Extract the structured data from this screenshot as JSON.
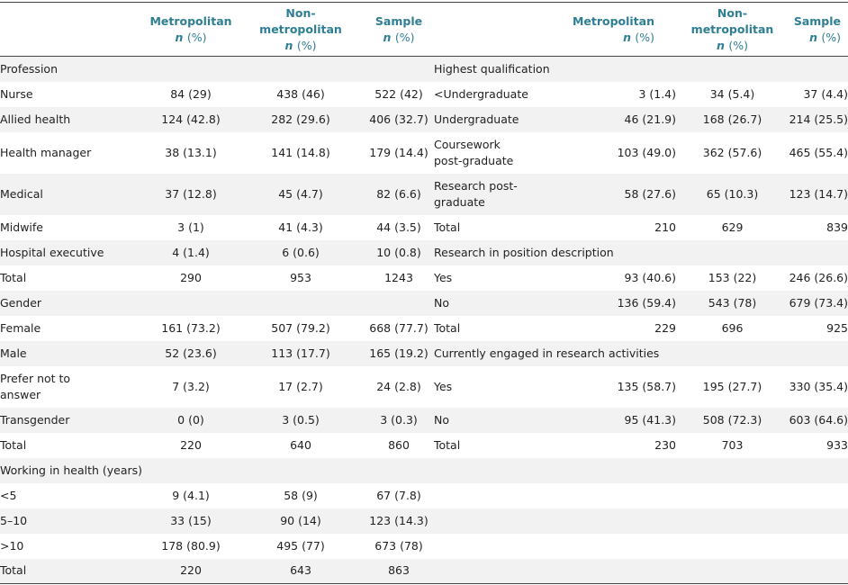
{
  "header": {
    "cols": [
      {
        "line1": "Metropolitan",
        "n": "n",
        "pct": "(%)"
      },
      {
        "line1": "Non-",
        "line2": "metropolitan",
        "n": "n",
        "pct": "(%)"
      },
      {
        "line1": "Sample",
        "n": "n",
        "pct": "(%)"
      }
    ]
  },
  "rows": [
    {
      "left": {
        "label": "Profession",
        "vals": [
          "",
          "",
          ""
        ]
      },
      "right": {
        "label": "Highest qualification",
        "vals": [
          "",
          "",
          ""
        ]
      }
    },
    {
      "left": {
        "label": "Nurse",
        "vals": [
          "84 (29)",
          "438 (46)",
          "522 (42)"
        ]
      },
      "right": {
        "label": "<Undergraduate",
        "vals": [
          "3 (1.4)",
          "34 (5.4)",
          "37 (4.4)"
        ]
      }
    },
    {
      "left": {
        "label": "Allied health",
        "vals": [
          "124 (42.8)",
          "282 (29.6)",
          "406 (32.7)"
        ]
      },
      "right": {
        "label": "Undergraduate",
        "vals": [
          "46 (21.9)",
          "168 (26.7)",
          "214 (25.5)"
        ]
      }
    },
    {
      "left": {
        "label": "Health manager",
        "vals": [
          "38 (13.1)",
          "141 (14.8)",
          "179 (14.4)"
        ]
      },
      "right": {
        "label": "Coursework post-graduate",
        "vals": [
          "103 (49.0)",
          "362 (57.6)",
          "465 (55.4)"
        ]
      }
    },
    {
      "left": {
        "label": "Medical",
        "vals": [
          "37 (12.8)",
          "45 (4.7)",
          "82 (6.6)"
        ]
      },
      "right": {
        "label": "Research post-graduate",
        "vals": [
          "58 (27.6)",
          "65 (10.3)",
          "123 (14.7)"
        ]
      }
    },
    {
      "left": {
        "label": "Midwife",
        "vals": [
          "3 (1)",
          "41 (4.3)",
          "44 (3.5)"
        ]
      },
      "right": {
        "label": "Total",
        "vals": [
          "210",
          "629",
          "839"
        ]
      }
    },
    {
      "left": {
        "label": "Hospital executive",
        "vals": [
          "4 (1.4)",
          "6 (0.6)",
          "10 (0.8)"
        ]
      },
      "right": {
        "label": "Research in position description",
        "vals": [
          "",
          "",
          ""
        ]
      }
    },
    {
      "left": {
        "label": "Total",
        "vals": [
          "290",
          "953",
          "1243"
        ]
      },
      "right": {
        "label": "Yes",
        "vals": [
          "93 (40.6)",
          "153 (22)",
          "246 (26.6)"
        ]
      }
    },
    {
      "left": {
        "label": "Gender",
        "vals": [
          "",
          "",
          ""
        ]
      },
      "right": {
        "label": "No",
        "vals": [
          "136 (59.4)",
          "543 (78)",
          "679 (73.4)"
        ]
      }
    },
    {
      "left": {
        "label": "Female",
        "vals": [
          "161 (73.2)",
          "507 (79.2)",
          "668 (77.7)"
        ]
      },
      "right": {
        "label": "Total",
        "vals": [
          "229",
          "696",
          "925"
        ]
      }
    },
    {
      "left": {
        "label": "Male",
        "vals": [
          "52 (23.6)",
          "113 (17.7)",
          "165 (19.2)"
        ]
      },
      "right": {
        "label": "Currently engaged in research activities",
        "vals": [
          "",
          "",
          ""
        ]
      }
    },
    {
      "left": {
        "label": "Prefer not to answer",
        "vals": [
          "7 (3.2)",
          "17 (2.7)",
          "24 (2.8)"
        ]
      },
      "right": {
        "label": "Yes",
        "vals": [
          "135 (58.7)",
          "195 (27.7)",
          "330 (35.4)"
        ]
      }
    },
    {
      "left": {
        "label": "Transgender",
        "vals": [
          "0 (0)",
          "3 (0.5)",
          "3 (0.3)"
        ]
      },
      "right": {
        "label": "No",
        "vals": [
          "95 (41.3)",
          "508 (72.3)",
          "603 (64.6)"
        ]
      }
    },
    {
      "left": {
        "label": "Total",
        "vals": [
          "220",
          "640",
          "860"
        ]
      },
      "right": {
        "label": "Total",
        "vals": [
          "230",
          "703",
          "933"
        ]
      }
    },
    {
      "left": {
        "label": "Working in health (years)",
        "vals": [
          "",
          "",
          ""
        ]
      },
      "right": {
        "label": "",
        "vals": [
          "",
          "",
          ""
        ]
      }
    },
    {
      "left": {
        "label": "<5",
        "vals": [
          "9 (4.1)",
          "58 (9)",
          "67 (7.8)"
        ]
      },
      "right": {
        "label": "",
        "vals": [
          "",
          "",
          ""
        ]
      }
    },
    {
      "left": {
        "label": "5–10",
        "vals": [
          "33 (15)",
          "90 (14)",
          "123 (14.3)"
        ]
      },
      "right": {
        "label": "",
        "vals": [
          "",
          "",
          ""
        ]
      }
    },
    {
      "left": {
        "label": ">10",
        "vals": [
          "178 (80.9)",
          "495 (77)",
          "673 (78)"
        ]
      },
      "right": {
        "label": "",
        "vals": [
          "",
          "",
          ""
        ]
      }
    },
    {
      "left": {
        "label": "Total",
        "vals": [
          "220",
          "643",
          "863"
        ]
      },
      "right": {
        "label": "",
        "vals": [
          "",
          "",
          ""
        ]
      }
    }
  ]
}
